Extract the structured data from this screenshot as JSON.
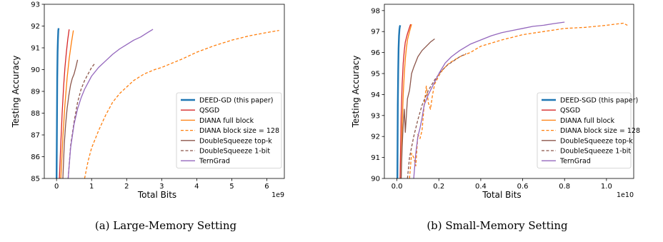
{
  "captions": [
    "(a) Large-Memory Setting",
    "(b) Small-Memory Setting"
  ],
  "chart_data": [
    {
      "type": "line",
      "xlabel": "Total Bits",
      "ylabel": "Testing Accuracy",
      "x_multiplier": "1e9",
      "xlim": [
        -0.35,
        6.5
      ],
      "ylim": [
        85,
        93
      ],
      "xticks": [
        0,
        1,
        2,
        3,
        4,
        5,
        6
      ],
      "yticks": [
        85,
        86,
        87,
        88,
        89,
        90,
        91,
        92,
        93
      ],
      "grid": false,
      "legend_position": "lower-right",
      "series": [
        {
          "name": "DEED-GD (this paper)",
          "color": "#1f77b4",
          "dash": "solid",
          "x": [
            0.0,
            0.01,
            0.02,
            0.03,
            0.04,
            0.05,
            0.06
          ],
          "y": [
            85.0,
            87.5,
            89.6,
            90.8,
            91.4,
            91.8,
            91.9
          ]
        },
        {
          "name": "QSGD",
          "color": "#d62728",
          "dash": "solid",
          "x": [
            0.08,
            0.12,
            0.16,
            0.2,
            0.24,
            0.28,
            0.32,
            0.36
          ],
          "y": [
            85.0,
            86.6,
            88.0,
            89.2,
            90.1,
            90.8,
            91.4,
            91.85
          ]
        },
        {
          "name": "DIANA full block",
          "color": "#ff7f0e",
          "dash": "solid",
          "x": [
            0.12,
            0.18,
            0.24,
            0.3,
            0.36,
            0.42,
            0.48
          ],
          "y": [
            85.0,
            86.9,
            88.4,
            89.6,
            90.5,
            91.2,
            91.8
          ]
        },
        {
          "name": "DIANA block size  = 128",
          "color": "#ff7f0e",
          "dash": "dashed",
          "x": [
            0.8,
            0.9,
            1.0,
            1.2,
            1.4,
            1.6,
            1.8,
            2.0,
            2.2,
            2.5,
            2.8,
            3.0,
            3.3,
            3.6,
            4.0,
            4.5,
            5.0,
            5.5,
            6.0,
            6.35
          ],
          "y": [
            85.0,
            85.8,
            86.4,
            87.2,
            87.9,
            88.5,
            88.9,
            89.2,
            89.5,
            89.8,
            90.0,
            90.1,
            90.3,
            90.5,
            90.8,
            91.1,
            91.35,
            91.55,
            91.7,
            91.8
          ]
        },
        {
          "name": "DoubleSqueeze top-k",
          "color": "#8c564b",
          "dash": "solid",
          "x": [
            0.18,
            0.22,
            0.26,
            0.3,
            0.35,
            0.4,
            0.45,
            0.5,
            0.55,
            0.6
          ],
          "y": [
            85.0,
            86.6,
            87.5,
            88.2,
            88.8,
            89.3,
            89.6,
            89.8,
            90.1,
            90.45
          ]
        },
        {
          "name": "DoubleSqueeze 1-bit",
          "color": "#8c564b",
          "dash": "dashed",
          "x": [
            0.33,
            0.4,
            0.5,
            0.6,
            0.7,
            0.8,
            0.9,
            1.0,
            1.1
          ],
          "y": [
            85.0,
            86.5,
            87.6,
            88.5,
            89.1,
            89.5,
            89.8,
            90.1,
            90.3
          ]
        },
        {
          "name": "TernGrad",
          "color": "#9467bd",
          "dash": "solid",
          "x": [
            0.33,
            0.4,
            0.5,
            0.6,
            0.7,
            0.8,
            0.9,
            1.0,
            1.2,
            1.4,
            1.6,
            1.8,
            2.0,
            2.2,
            2.4,
            2.6,
            2.75
          ],
          "y": [
            85.0,
            86.4,
            87.5,
            88.2,
            88.7,
            89.1,
            89.4,
            89.7,
            90.1,
            90.4,
            90.7,
            90.95,
            91.15,
            91.35,
            91.5,
            91.7,
            91.85
          ]
        }
      ]
    },
    {
      "type": "line",
      "xlabel": "Total Bits",
      "ylabel": "Testing Accuracy",
      "x_multiplier": "1e10",
      "xlim": [
        -0.06,
        1.13
      ],
      "ylim": [
        90,
        98.3
      ],
      "xticks": [
        0.0,
        0.2,
        0.4,
        0.6,
        0.8,
        1.0
      ],
      "xtick_labels": [
        "0.0",
        "0.2",
        "0.4",
        "0.6",
        "0.8",
        "1.0"
      ],
      "yticks": [
        90,
        91,
        92,
        93,
        94,
        95,
        96,
        97,
        98
      ],
      "grid": false,
      "legend_position": "lower-right",
      "series": [
        {
          "name": "DEED-SGD (this paper)",
          "color": "#1f77b4",
          "dash": "solid",
          "x": [
            0.002,
            0.004,
            0.006,
            0.008,
            0.01,
            0.012,
            0.014,
            0.016
          ],
          "y": [
            90.0,
            93.5,
            95.2,
            96.2,
            96.8,
            97.1,
            97.25,
            97.3
          ]
        },
        {
          "name": "QSGD",
          "color": "#d62728",
          "dash": "solid",
          "x": [
            0.015,
            0.02,
            0.025,
            0.03,
            0.035,
            0.04,
            0.05,
            0.06,
            0.065
          ],
          "y": [
            90.0,
            93.0,
            94.5,
            95.5,
            96.1,
            96.5,
            96.9,
            97.2,
            97.35
          ]
        },
        {
          "name": "DIANA full block",
          "color": "#ff7f0e",
          "dash": "solid",
          "x": [
            0.02,
            0.025,
            0.03,
            0.035,
            0.04,
            0.045,
            0.05,
            0.06,
            0.07
          ],
          "y": [
            90.0,
            92.5,
            94.0,
            95.0,
            95.7,
            96.2,
            96.6,
            97.0,
            97.35
          ]
        },
        {
          "name": "DIANA block size  = 128",
          "color": "#ff7f0e",
          "dash": "dashed",
          "x": [
            0.06,
            0.07,
            0.08,
            0.09,
            0.1,
            0.11,
            0.12,
            0.13,
            0.14,
            0.15,
            0.16,
            0.17,
            0.18,
            0.2,
            0.22,
            0.25,
            0.3,
            0.35,
            0.4,
            0.5,
            0.6,
            0.7,
            0.8,
            0.9,
            1.0,
            1.08,
            1.1
          ],
          "y": [
            90.0,
            91.2,
            91.0,
            90.6,
            92.1,
            91.9,
            92.3,
            93.5,
            94.4,
            93.6,
            93.3,
            94.0,
            94.5,
            94.9,
            95.2,
            95.5,
            95.8,
            96.0,
            96.3,
            96.6,
            96.85,
            97.0,
            97.15,
            97.2,
            97.3,
            97.4,
            97.3
          ]
        },
        {
          "name": "DoubleSqueeze top-k",
          "color": "#8c564b",
          "dash": "solid",
          "x": [
            0.02,
            0.025,
            0.03,
            0.035,
            0.04,
            0.05,
            0.06,
            0.07,
            0.08,
            0.1,
            0.12,
            0.14,
            0.16,
            0.18
          ],
          "y": [
            90.0,
            91.5,
            92.6,
            93.3,
            92.2,
            93.8,
            94.2,
            95.0,
            95.3,
            95.8,
            96.1,
            96.3,
            96.5,
            96.65
          ]
        },
        {
          "name": "DoubleSqueeze 1-bit",
          "color": "#8c564b",
          "dash": "dashed",
          "x": [
            0.05,
            0.06,
            0.08,
            0.1,
            0.12,
            0.15,
            0.18,
            0.21,
            0.24,
            0.27,
            0.3,
            0.33
          ],
          "y": [
            90.0,
            91.0,
            92.0,
            92.8,
            93.5,
            94.2,
            94.7,
            95.1,
            95.4,
            95.6,
            95.8,
            95.95
          ]
        },
        {
          "name": "TernGrad",
          "color": "#9467bd",
          "dash": "solid",
          "x": [
            0.08,
            0.09,
            0.1,
            0.11,
            0.12,
            0.13,
            0.15,
            0.17,
            0.2,
            0.23,
            0.26,
            0.3,
            0.35,
            0.4,
            0.45,
            0.5,
            0.55,
            0.6,
            0.65,
            0.7,
            0.75,
            0.8
          ],
          "y": [
            90.0,
            91.2,
            92.0,
            92.4,
            92.9,
            93.5,
            94.0,
            94.4,
            95.0,
            95.5,
            95.8,
            96.1,
            96.4,
            96.6,
            96.8,
            96.95,
            97.05,
            97.15,
            97.25,
            97.3,
            97.38,
            97.45
          ]
        }
      ]
    }
  ]
}
